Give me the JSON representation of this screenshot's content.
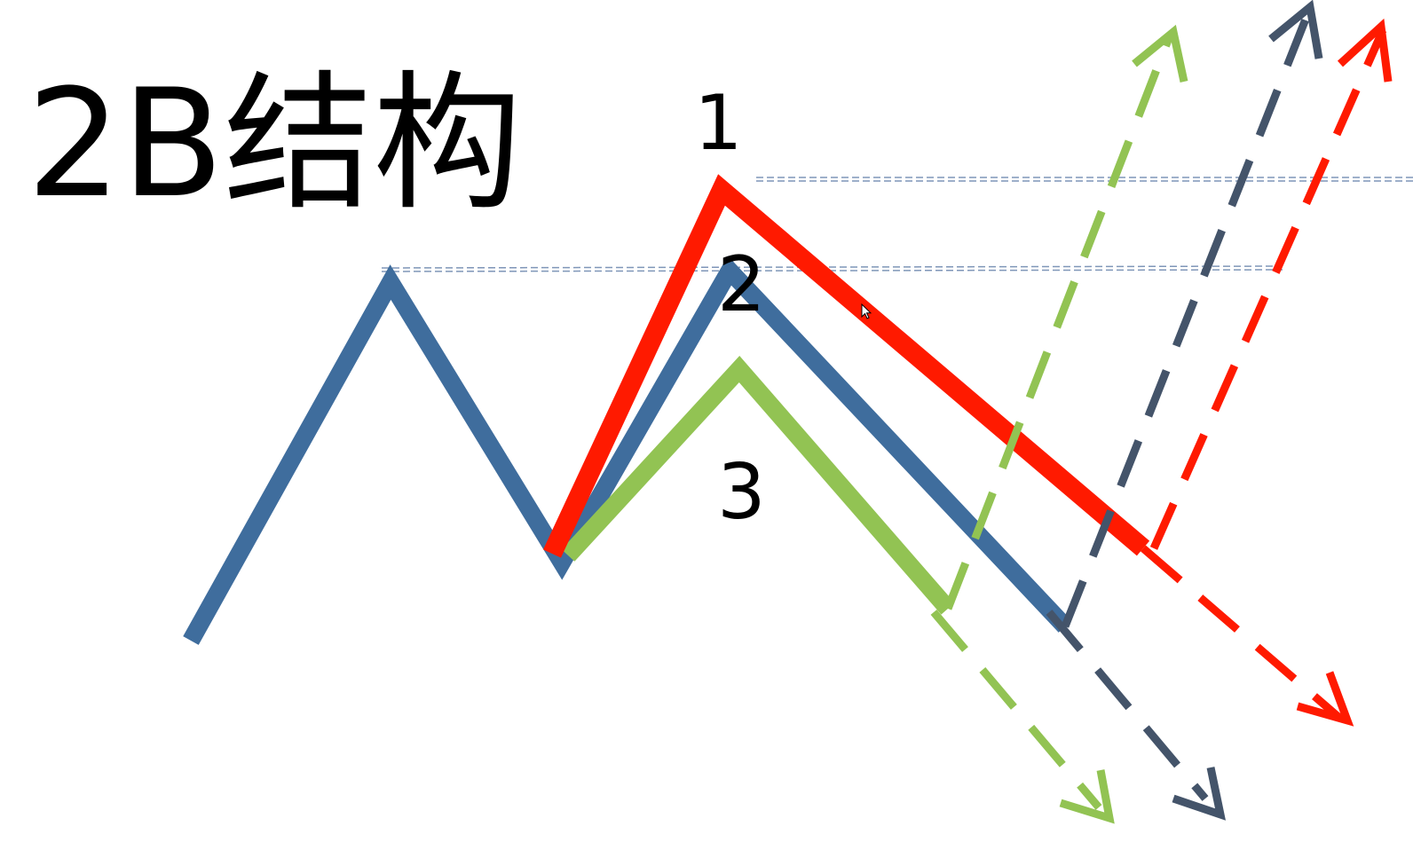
{
  "title": "2B结构",
  "labels": {
    "one": "1",
    "two": "2",
    "three": "3"
  },
  "colors": {
    "blue_line": "#3f6d9d",
    "red_line": "#ff1a00",
    "green_line": "#92c353",
    "dark_dash": "#44546a",
    "red_dash": "#ff1a00",
    "green_dash": "#92c353",
    "guide_line": "#7f96b8"
  },
  "icons": [
    "mouse-cursor-icon"
  ]
}
